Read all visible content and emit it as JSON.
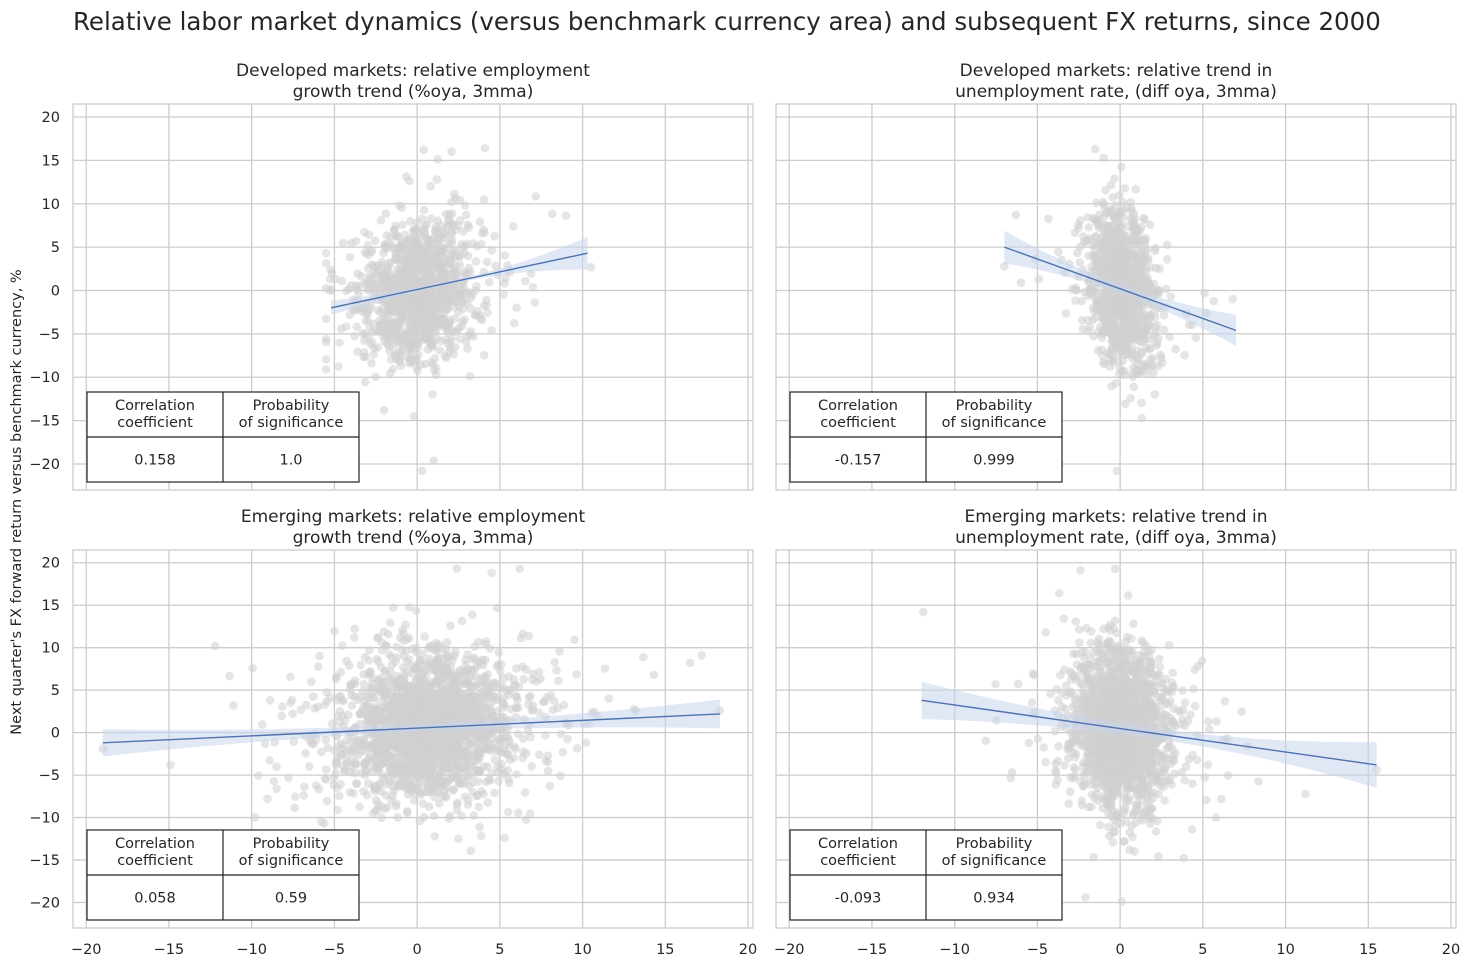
{
  "title": "Relative labor market dynamics (versus benchmark currency area) and subsequent FX returns, since 2000",
  "y_axis_label": "Next quarter's FX forward return versus benchmark currency, %",
  "colors": {
    "points": "#cfcfcf",
    "fit_line": "#4c72b0",
    "band": "#c9d6ec",
    "grid": "#cccccc",
    "spine": "#cccccc",
    "table_border": "#222222"
  },
  "chart_data": [
    {
      "id": "dm-employment",
      "type": "scatter",
      "title_lines": [
        "Developed markets: relative employment",
        "growth trend (%oya, 3mma)"
      ],
      "xlim": [
        -20.8,
        20.3
      ],
      "ylim": [
        -23,
        21.5
      ],
      "xticks": [
        -20,
        -15,
        -10,
        -5,
        0,
        5,
        10,
        15,
        20
      ],
      "yticks": [
        20,
        15,
        10,
        5,
        0,
        -5,
        -10,
        -15,
        -20
      ],
      "show_xtick_labels": false,
      "show_ytick_labels": true,
      "scatter": {
        "n": 1100,
        "x_center": 0,
        "x_spread": 1.6,
        "x_clip": [
          -5.5,
          10.6
        ],
        "y_spread": 4.2,
        "y_clip": [
          -21,
          16.5
        ],
        "seed": 11
      },
      "fit": {
        "x": [
          -5.2,
          10.3
        ],
        "y": [
          -2.0,
          4.3
        ],
        "ci_half_width": [
          0.8,
          1.9
        ]
      },
      "outliers": [
        [
          0.4,
          16.2
        ],
        [
          4.1,
          16.4
        ],
        [
          9.0,
          8.6
        ],
        [
          10.5,
          2.7
        ],
        [
          0.3,
          -20.8
        ],
        [
          1.0,
          -19.6
        ]
      ],
      "table": {
        "headers": [
          "Correlation\ncoefficient",
          "Probability\nof significance"
        ],
        "values": [
          "0.158",
          "1.0"
        ]
      }
    },
    {
      "id": "dm-unemployment",
      "type": "scatter",
      "title_lines": [
        "Developed markets: relative trend in",
        "unemployment rate, (diff oya, 3mma)"
      ],
      "xlim": [
        -20.8,
        20.3
      ],
      "ylim": [
        -23,
        21.5
      ],
      "xticks": [
        -20,
        -15,
        -10,
        -5,
        0,
        5,
        10,
        15,
        20
      ],
      "yticks": [
        20,
        15,
        10,
        5,
        0,
        -5,
        -10,
        -15,
        -20
      ],
      "show_xtick_labels": false,
      "show_ytick_labels": false,
      "scatter": {
        "n": 1100,
        "x_center": 0,
        "x_spread": 0.9,
        "x_clip": [
          -7.2,
          7.0
        ],
        "y_spread": 4.3,
        "y_clip": [
          -21,
          16.5
        ],
        "seed": 23
      },
      "fit": {
        "x": [
          -7.0,
          7.0
        ],
        "y": [
          5.0,
          -4.6
        ],
        "ci_half_width": [
          1.9,
          1.8
        ]
      },
      "outliers": [
        [
          -6.3,
          8.7
        ],
        [
          -6.0,
          0.9
        ],
        [
          -7.0,
          2.8
        ],
        [
          -1.5,
          16.3
        ],
        [
          -1.0,
          15.3
        ],
        [
          -0.2,
          -20.8
        ],
        [
          6.8,
          -1.0
        ],
        [
          5.2,
          -2.6
        ]
      ],
      "table": {
        "headers": [
          "Correlation\ncoefficient",
          "Probability\nof significance"
        ],
        "values": [
          "-0.157",
          "0.999"
        ]
      }
    },
    {
      "id": "em-employment",
      "type": "scatter",
      "title_lines": [
        "Emerging markets: relative employment",
        "growth trend (%oya, 3mma)"
      ],
      "xlim": [
        -20.8,
        20.3
      ],
      "ylim": [
        -23,
        21.5
      ],
      "xticks": [
        -20,
        -15,
        -10,
        -5,
        0,
        5,
        10,
        15,
        20
      ],
      "yticks": [
        20,
        15,
        10,
        5,
        0,
        -5,
        -10,
        -15,
        -20
      ],
      "show_xtick_labels": true,
      "show_ytick_labels": true,
      "scatter": {
        "n": 2000,
        "x_center": 0.8,
        "x_spread": 2.6,
        "x_clip": [
          -19,
          18.6
        ],
        "y_spread": 4.6,
        "y_clip": [
          -20.5,
          19.5
        ],
        "seed": 37
      },
      "fit": {
        "x": [
          -19.0,
          18.3
        ],
        "y": [
          -1.2,
          2.2
        ],
        "ci_half_width": [
          1.6,
          1.7
        ]
      },
      "outliers": [
        [
          -12.2,
          10.2
        ],
        [
          -14.9,
          -3.8
        ],
        [
          -11.1,
          3.2
        ],
        [
          -19.0,
          -1.9
        ],
        [
          18.3,
          2.6
        ],
        [
          16.5,
          8.2
        ],
        [
          17.2,
          9.1
        ],
        [
          2.4,
          19.3
        ],
        [
          6.2,
          19.3
        ],
        [
          4.5,
          18.8
        ],
        [
          -9.8,
          -10.0
        ],
        [
          -8.5,
          -4.0
        ]
      ],
      "table": {
        "headers": [
          "Correlation\ncoefficient",
          "Probability\nof significance"
        ],
        "values": [
          "0.058",
          "0.59"
        ]
      }
    },
    {
      "id": "em-unemployment",
      "type": "scatter",
      "title_lines": [
        "Emerging markets: relative trend in",
        "unemployment rate, (diff oya, 3mma)"
      ],
      "xlim": [
        -20.8,
        20.3
      ],
      "ylim": [
        -23,
        21.5
      ],
      "xticks": [
        -20,
        -15,
        -10,
        -5,
        0,
        5,
        10,
        15,
        20
      ],
      "yticks": [
        20,
        15,
        10,
        5,
        0,
        -5,
        -10,
        -15,
        -20
      ],
      "show_xtick_labels": true,
      "show_ytick_labels": false,
      "scatter": {
        "n": 2000,
        "x_center": 0,
        "x_spread": 1.3,
        "x_clip": [
          -12,
          15.5
        ],
        "y_spread": 4.6,
        "y_clip": [
          -20,
          19.5
        ],
        "seed": 53
      },
      "fit": {
        "x": [
          -12.0,
          15.5
        ],
        "y": [
          3.8,
          -3.8
        ],
        "ci_half_width": [
          2.2,
          2.7
        ]
      },
      "outliers": [
        [
          -11.9,
          14.2
        ],
        [
          -4.5,
          11.8
        ],
        [
          -2.4,
          19.1
        ],
        [
          -0.3,
          19.3
        ],
        [
          15.5,
          -4.4
        ],
        [
          11.2,
          -7.2
        ],
        [
          5.8,
          -10.0
        ],
        [
          -4.6,
          -11.9
        ],
        [
          -2.1,
          -19.4
        ],
        [
          0.1,
          -19.9
        ]
      ],
      "table": {
        "headers": [
          "Correlation\ncoefficient",
          "Probability\nof significance"
        ],
        "values": [
          "-0.093",
          "0.934"
        ]
      }
    }
  ]
}
